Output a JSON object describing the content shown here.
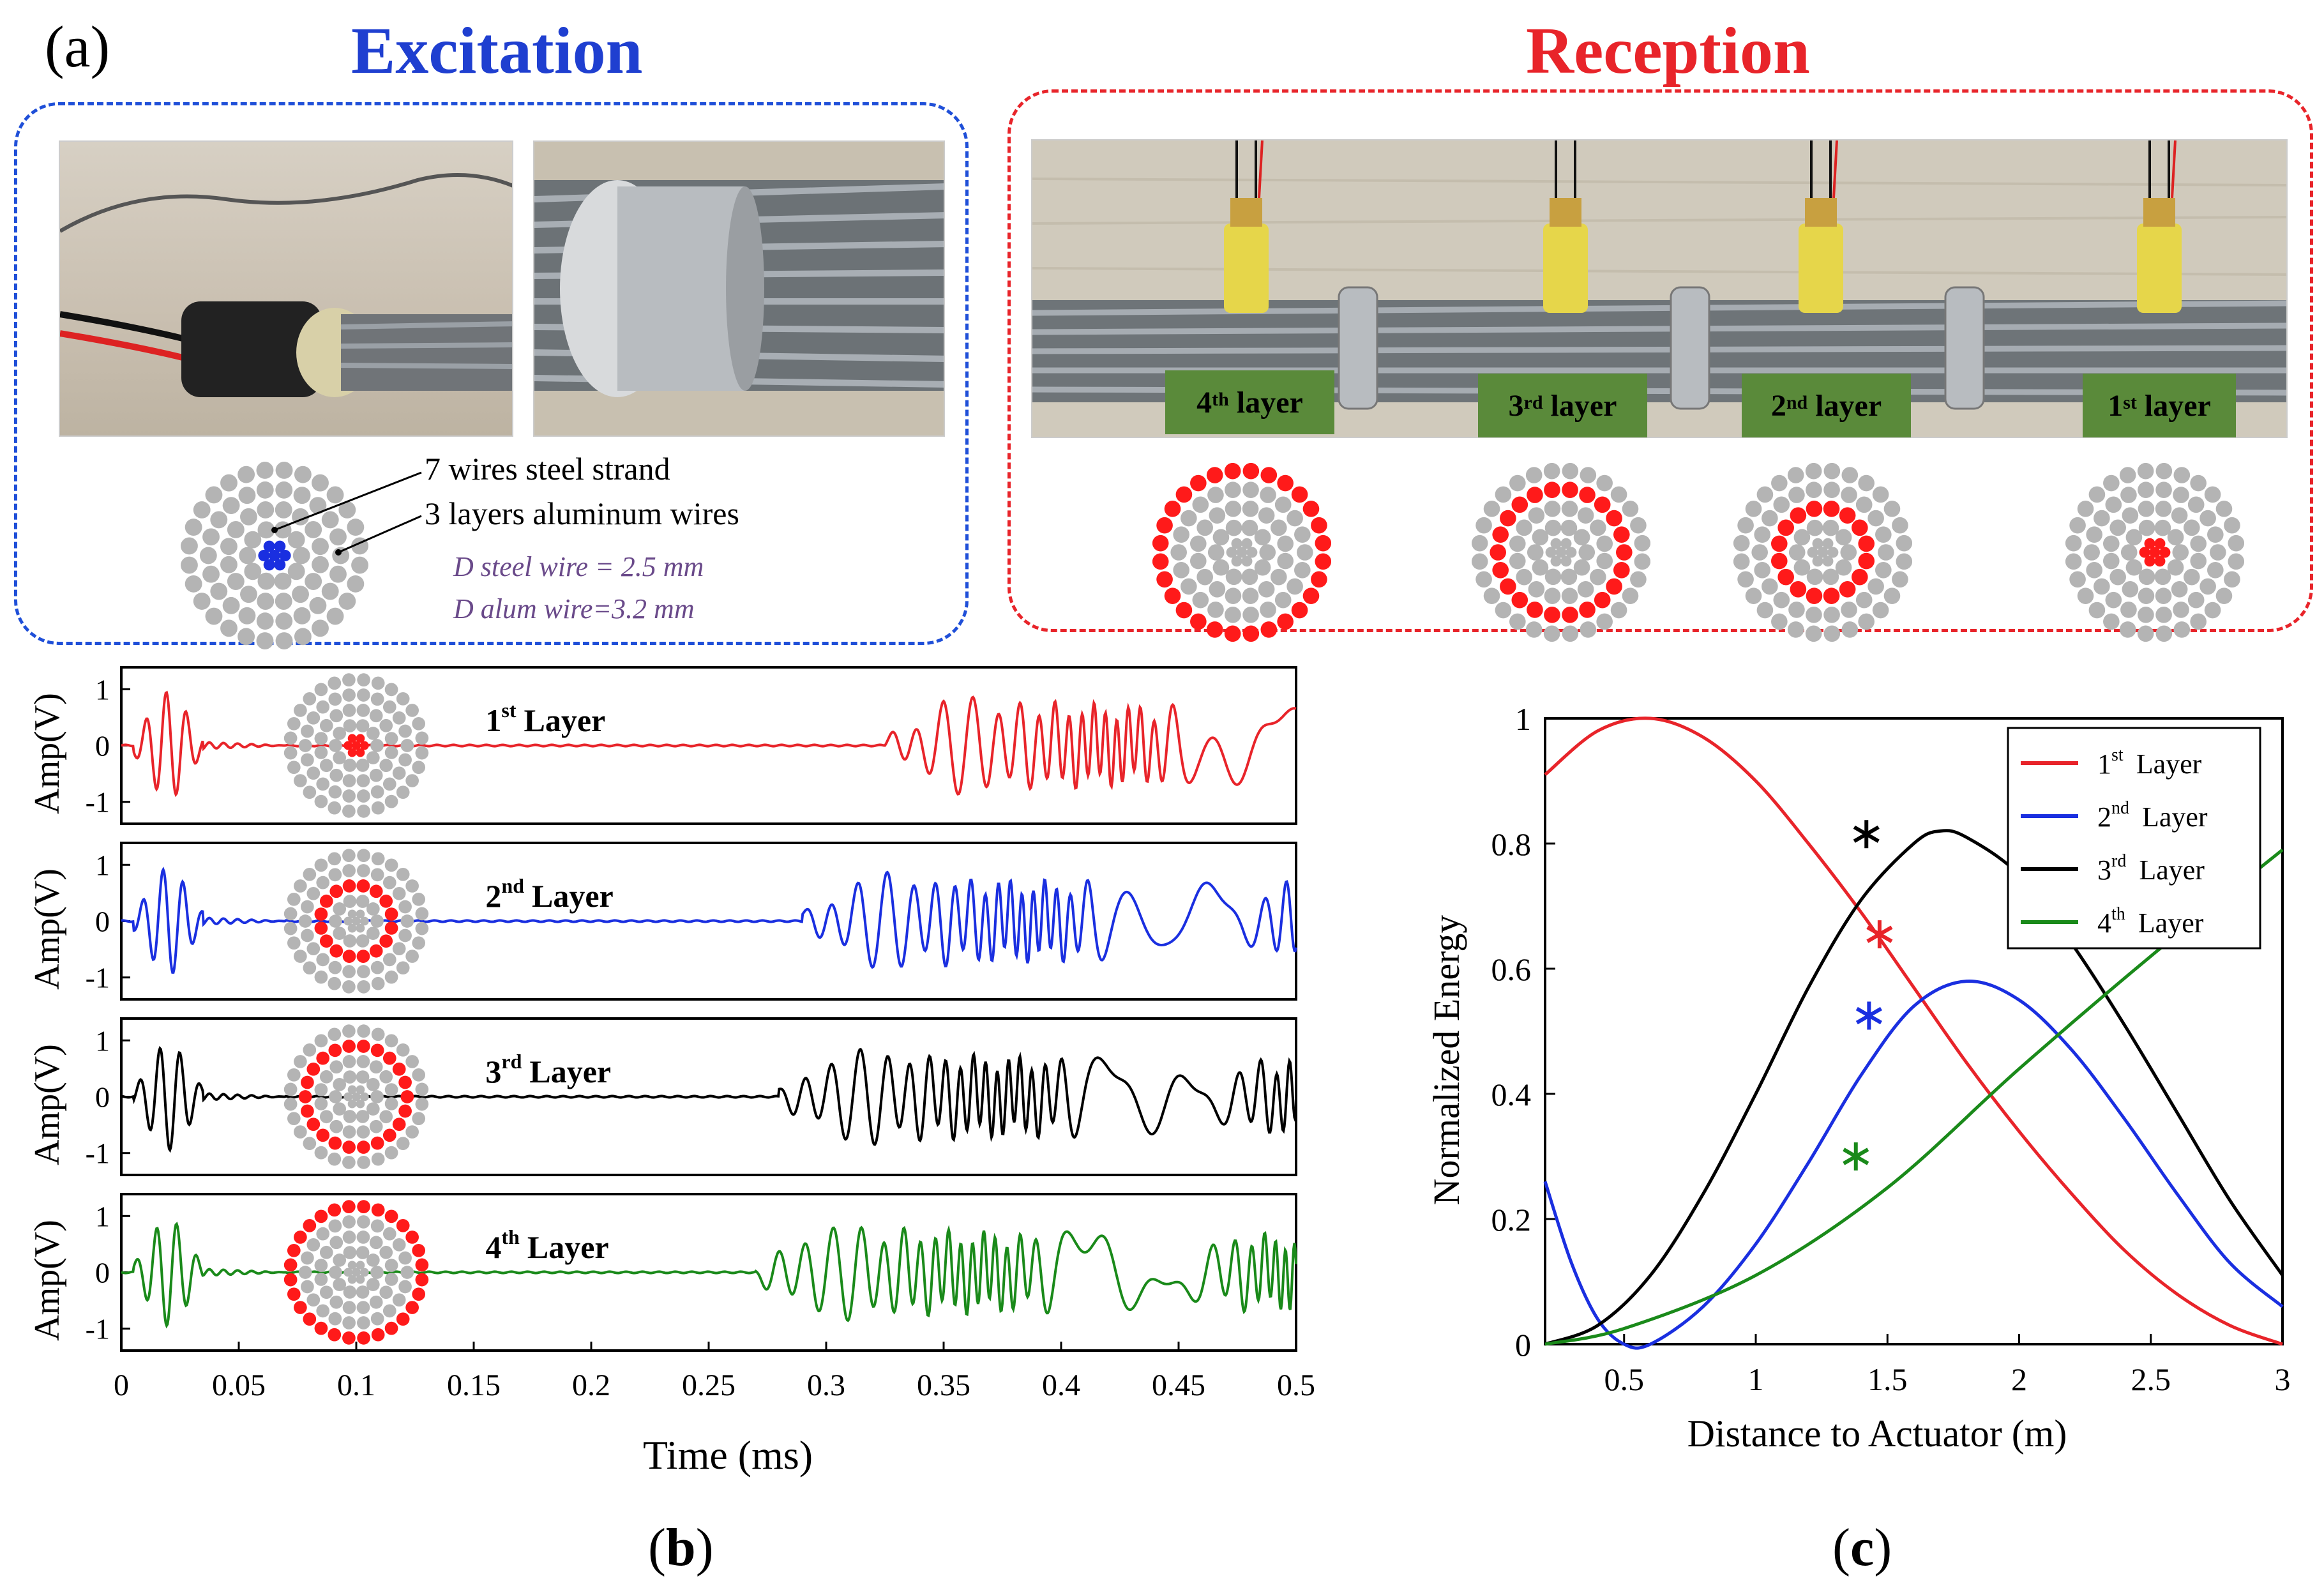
{
  "panel_a": {
    "label": "(a)",
    "excitation_title": "Excitation",
    "reception_title": "Reception",
    "excitation": {
      "strand_label": "7 wires steel strand",
      "aluminum_label": "3 layers aluminum wires",
      "d_steel": "D steel wire = 2.5 mm",
      "d_alum": "D alum wire=3.2 mm"
    },
    "reception_tags": [
      {
        "num": "4",
        "sup": "th",
        "word": "layer"
      },
      {
        "num": "3",
        "sup": "rd",
        "word": "layer"
      },
      {
        "num": "2",
        "sup": "nd",
        "word": "layer"
      },
      {
        "num": "1",
        "sup": "st",
        "word": "layer"
      }
    ],
    "colors": {
      "excitation_border": "#1f4fd8",
      "reception_border": "#e8242a",
      "excitation_title": "#1f3fd0",
      "reception_title": "#e8242a",
      "wire_gray": "#b4b4b4",
      "wire_red": "#ff1a1a",
      "wire_blue": "#1a2fe0",
      "tag_green": "#5a8a3a"
    }
  },
  "panel_b": {
    "caption_open": "(",
    "caption_letter": "b",
    "caption_close": ")",
    "ylabel": "Amp(V)",
    "xlabel": "Time (ms)",
    "xticks": [
      "0",
      "0.05",
      "0.1",
      "0.15",
      "0.2",
      "0.25",
      "0.3",
      "0.35",
      "0.4",
      "0.45",
      "0.5"
    ],
    "yticks": [
      "1",
      "0",
      "-1"
    ],
    "traces": [
      {
        "num": "1",
        "sup": "st",
        "word": "Layer",
        "color": "#e8242a",
        "ring": 1
      },
      {
        "num": "2",
        "sup": "nd",
        "word": "Layer",
        "color": "#1a2fe0",
        "ring": 2
      },
      {
        "num": "3",
        "sup": "rd",
        "word": "Layer",
        "color": "#000000",
        "ring": 3
      },
      {
        "num": "4",
        "sup": "th",
        "word": "Layer",
        "color": "#1a8a1a",
        "ring": 4
      }
    ]
  },
  "panel_c": {
    "caption_open": "(",
    "caption_letter": "c",
    "caption_close": ")",
    "chart_data": {
      "type": "line",
      "xlabel": "Distance to Actuator (m)",
      "ylabel": "Normalized Energy",
      "xlim": [
        0.2,
        3.0
      ],
      "ylim": [
        0,
        1
      ],
      "xticks": [
        "0.5",
        "1",
        "1.5",
        "2",
        "2.5",
        "3"
      ],
      "yticks": [
        "0",
        "0.2",
        "0.4",
        "0.6",
        "0.8",
        "1"
      ],
      "legend_position": "top-right",
      "series": [
        {
          "num": "1",
          "sup": "st",
          "word": "Layer",
          "color": "#e8242a",
          "x": [
            0.2,
            0.4,
            0.6,
            0.8,
            1.0,
            1.2,
            1.4,
            1.6,
            1.8,
            2.0,
            2.2,
            2.4,
            2.6,
            2.8,
            3.0
          ],
          "y": [
            0.91,
            0.98,
            1.0,
            0.97,
            0.9,
            0.8,
            0.69,
            0.57,
            0.45,
            0.34,
            0.24,
            0.15,
            0.08,
            0.03,
            0.0
          ],
          "marker": {
            "x": 1.47,
            "y": 0.655
          }
        },
        {
          "num": "2",
          "sup": "nd",
          "word": "Layer",
          "color": "#1a2fe0",
          "x": [
            0.2,
            0.3,
            0.4,
            0.5,
            0.6,
            0.8,
            1.0,
            1.2,
            1.4,
            1.6,
            1.8,
            2.0,
            2.2,
            2.4,
            2.6,
            2.8,
            3.0
          ],
          "y": [
            0.26,
            0.13,
            0.04,
            0.0,
            0.0,
            0.06,
            0.16,
            0.29,
            0.43,
            0.54,
            0.58,
            0.55,
            0.47,
            0.36,
            0.24,
            0.13,
            0.06
          ],
          "marker": {
            "x": 1.43,
            "y": 0.525
          }
        },
        {
          "num": "3",
          "sup": "rd",
          "word": "Layer",
          "color": "#000000",
          "x": [
            0.2,
            0.4,
            0.6,
            0.8,
            1.0,
            1.2,
            1.4,
            1.6,
            1.7,
            1.8,
            2.0,
            2.2,
            2.4,
            2.6,
            2.8,
            3.0
          ],
          "y": [
            0.0,
            0.03,
            0.11,
            0.24,
            0.4,
            0.57,
            0.71,
            0.8,
            0.82,
            0.81,
            0.75,
            0.64,
            0.51,
            0.37,
            0.23,
            0.11
          ],
          "marker": {
            "x": 1.42,
            "y": 0.815
          }
        },
        {
          "num": "4",
          "sup": "th",
          "word": "Layer",
          "color": "#1a8a1a",
          "x": [
            0.2,
            0.5,
            1.0,
            1.5,
            2.0,
            2.5,
            3.0
          ],
          "y": [
            0.0,
            0.025,
            0.11,
            0.25,
            0.44,
            0.62,
            0.79
          ],
          "marker": {
            "x": 1.38,
            "y": 0.3
          }
        }
      ]
    }
  }
}
